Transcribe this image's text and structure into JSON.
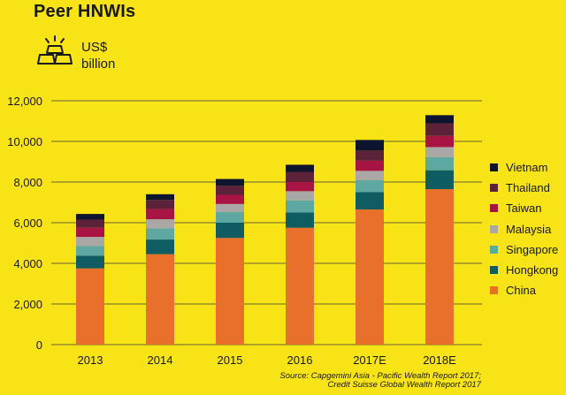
{
  "header": {
    "title": "Peer HNWIs",
    "unit_line1": "US$",
    "unit_line2": "billion"
  },
  "source": {
    "line1": "Source: Capgemini Asia - Pacific Wealth Report 2017;",
    "line2": "Credit Suisse Global Wealth Report 2017"
  },
  "icons": {
    "unit_icon": "gold-bars-icon"
  },
  "chart_data": {
    "type": "bar",
    "stacked": true,
    "categories": [
      "2013",
      "2014",
      "2015",
      "2016",
      "2017E",
      "2018E"
    ],
    "ylim": [
      0,
      12000
    ],
    "yticks": [
      0,
      2000,
      4000,
      6000,
      8000,
      10000,
      12000
    ],
    "ytick_labels": [
      "0",
      "2,000",
      "4,000",
      "6,000",
      "8,000",
      "10,000",
      "12,000"
    ],
    "grid": true,
    "legend_position": "right",
    "series": [
      {
        "name": "China",
        "color": "#E8702A",
        "values": [
          3750,
          4450,
          5250,
          5750,
          6650,
          7650
        ]
      },
      {
        "name": "Hongkong",
        "color": "#0F5C63",
        "values": [
          620,
          720,
          750,
          750,
          850,
          930
        ]
      },
      {
        "name": "Singapore",
        "color": "#5FA8A2",
        "values": [
          480,
          550,
          520,
          600,
          600,
          640
        ]
      },
      {
        "name": "Malaysia",
        "color": "#A9A8A6",
        "values": [
          450,
          450,
          400,
          450,
          450,
          500
        ]
      },
      {
        "name": "Taiwan",
        "color": "#A81545",
        "values": [
          450,
          500,
          450,
          450,
          500,
          550
        ]
      },
      {
        "name": "Thailand",
        "color": "#5B2239",
        "values": [
          400,
          450,
          450,
          500,
          500,
          620
        ]
      },
      {
        "name": "Vietnam",
        "color": "#0C1430",
        "values": [
          280,
          280,
          330,
          350,
          520,
          400
        ]
      }
    ]
  }
}
